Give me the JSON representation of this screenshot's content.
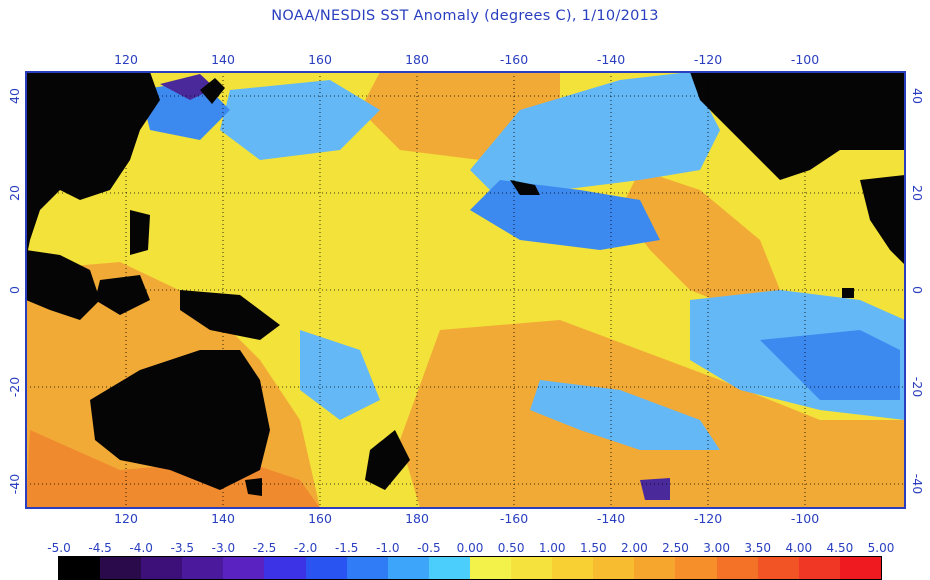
{
  "title": "NOAA/NESDIS SST Anomaly (degrees C), 1/10/2013",
  "axes": {
    "lon_ticks": [
      "120",
      "140",
      "160",
      "180",
      "-160",
      "-140",
      "-120",
      "-100"
    ],
    "lat_ticks_left": [
      "40",
      "20",
      "0",
      "-20",
      "-40"
    ],
    "lat_ticks_right": [
      "40",
      "20",
      "0",
      "-20",
      "-40"
    ]
  },
  "colorbar": {
    "labels": [
      "-5.0",
      "-4.5",
      "-4.0",
      "-3.5",
      "-3.0",
      "-2.5",
      "-2.0",
      "-1.5",
      "-1.0",
      "-0.5",
      "0.00",
      "0.50",
      "1.00",
      "1.50",
      "2.00",
      "2.50",
      "3.00",
      "3.50",
      "4.00",
      "4.50",
      "5.00"
    ],
    "colors": [
      "#000000",
      "#2a0a4a",
      "#3d0f78",
      "#4b1a9c",
      "#5a22c0",
      "#3c32e6",
      "#2a54f2",
      "#2f7cf6",
      "#3ea6fa",
      "#4ccefc",
      "#f2f24a",
      "#f6e23c",
      "#f8d034",
      "#f8bc30",
      "#f6a62c",
      "#f68e2a",
      "#f47228",
      "#f25426",
      "#f03624",
      "#ee1a20"
    ]
  },
  "map_colors": {
    "land": "#050505",
    "grid": "#000000",
    "frame": "#2a3fbf",
    "yellow": "#f2e23a",
    "orange": "#f2aa36",
    "deep_orange": "#f08a2e",
    "light_blue": "#64b8f6",
    "blue": "#3c8af0",
    "purple": "#4a2a9a"
  }
}
